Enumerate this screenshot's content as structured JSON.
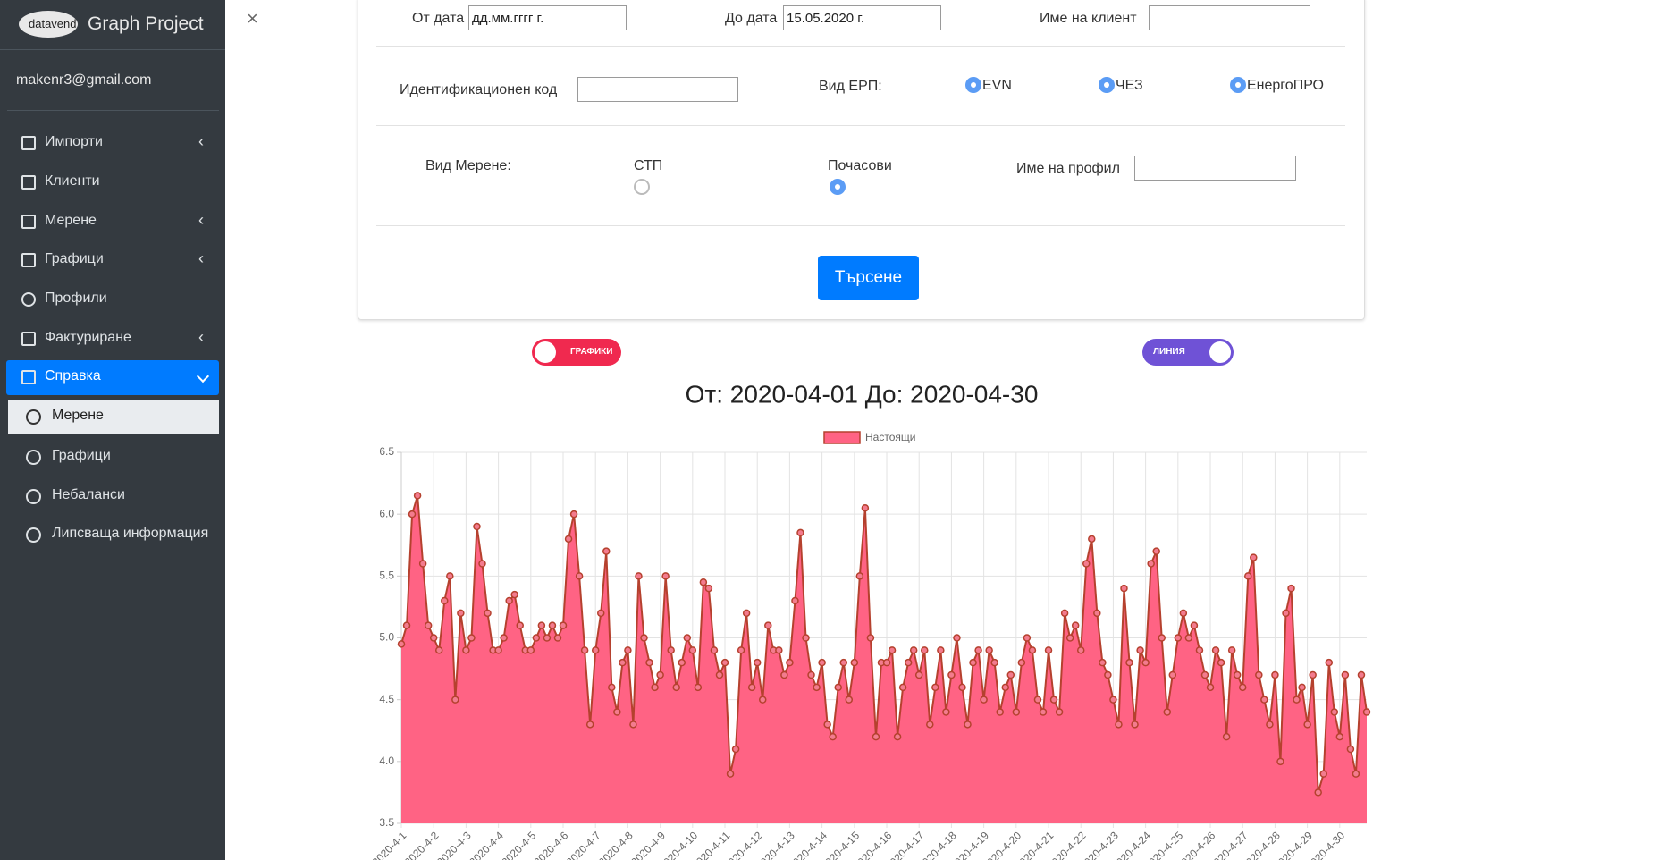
{
  "sidebar": {
    "logo": "datavend",
    "title": "Graph Project",
    "user": "makenr3@gmail.com",
    "menu": [
      "Импорти",
      "Клиенти",
      "Мерене",
      "Графици",
      "Профили",
      "Фактуриране",
      "Справка"
    ],
    "submenu": [
      "Мерене",
      "Графици",
      "Небаланси",
      "Липсваща информация"
    ]
  },
  "close": "×",
  "form": {
    "from_label": "От дата",
    "from_value": "дд.мм.гггг г.",
    "to_label": "До дата",
    "to_value": "15.05.2020 г.",
    "client_label": "Име на клиент",
    "id_label": "Идентификационен код",
    "erp_label": "Вид ЕРП:",
    "erp_options": [
      {
        "label": "EVN",
        "checked": true
      },
      {
        "label": "ЧЕЗ",
        "checked": true
      },
      {
        "label": "ЕнергоПРО",
        "checked": true
      }
    ],
    "measure_label": "Вид Мерене:",
    "measure_options": [
      {
        "label": "СТП",
        "checked": false
      },
      {
        "label": "Почасови",
        "checked": true
      }
    ],
    "profile_label": "Име на профил",
    "button": "Търсене"
  },
  "toggles": [
    "ГРАФИКИ",
    "ЛИНИЯ"
  ],
  "chart_data": {
    "type": "line",
    "title": "От: 2020-04-01 До: 2020-04-30",
    "categories": [
      "2020-4-1",
      null,
      null,
      null,
      null,
      null,
      "2020-4-2",
      null,
      null,
      null,
      null,
      null,
      "2020-4-3",
      null,
      null,
      null,
      null,
      null,
      "2020-4-4",
      null,
      null,
      null,
      null,
      null,
      "2020-4-5",
      null,
      null,
      null,
      null,
      null,
      "2020-4-6",
      null,
      null,
      null,
      null,
      null,
      "2020-4-7",
      null,
      null,
      null,
      null,
      null,
      "2020-4-8",
      null,
      null,
      null,
      null,
      null,
      "2020-4-9",
      null,
      null,
      null,
      null,
      null,
      "2020-4-10",
      null,
      null,
      null,
      null,
      null,
      "2020-4-11",
      null,
      null,
      null,
      null,
      null,
      "2020-4-12",
      null,
      null,
      null,
      null,
      null,
      "2020-4-13",
      null,
      null,
      null,
      null,
      null,
      "2020-4-14",
      null,
      null,
      null,
      null,
      null,
      "2020-4-15",
      null,
      null,
      null,
      null,
      null,
      "2020-4-16",
      null,
      null,
      null,
      null,
      null,
      "2020-4-17",
      null,
      null,
      null,
      null,
      null,
      "2020-4-18",
      null,
      null,
      null,
      null,
      null,
      "2020-4-19",
      null,
      null,
      null,
      null,
      null,
      "2020-4-20",
      null,
      null,
      null,
      null,
      null,
      "2020-4-21",
      null,
      null,
      null,
      null,
      null,
      "2020-4-22",
      null,
      null,
      null,
      null,
      null,
      "2020-4-23",
      null,
      null,
      null,
      null,
      null,
      "2020-4-24",
      null,
      null,
      null,
      null,
      null,
      "2020-4-25",
      null,
      null,
      null,
      null,
      null,
      "2020-4-26",
      null,
      null,
      null,
      null,
      null,
      "2020-4-27",
      null,
      null,
      null,
      null,
      null,
      "2020-4-28",
      null,
      null,
      null,
      null,
      null,
      "2020-4-29",
      null,
      null,
      null,
      null,
      null,
      "2020-4-30",
      null,
      null,
      null,
      null,
      null
    ],
    "series": [
      {
        "name": "Настоящи",
        "color": "#ff6384",
        "line_color": "#b5412e",
        "values": [
          4.95,
          5.1,
          6.0,
          6.15,
          5.6,
          5.1,
          5.0,
          4.9,
          5.3,
          5.5,
          4.5,
          5.2,
          4.9,
          5.0,
          5.9,
          5.6,
          5.2,
          4.9,
          4.9,
          5.0,
          5.3,
          5.35,
          5.1,
          4.9,
          4.9,
          5.0,
          5.1,
          5.0,
          5.1,
          5.0,
          5.1,
          5.8,
          6.0,
          5.5,
          4.9,
          4.3,
          4.9,
          5.2,
          5.7,
          4.6,
          4.4,
          4.8,
          4.9,
          4.3,
          5.5,
          5.0,
          4.8,
          4.6,
          4.7,
          5.5,
          4.9,
          4.6,
          4.8,
          5.0,
          4.9,
          4.6,
          5.45,
          5.4,
          4.9,
          4.7,
          4.8,
          3.9,
          4.1,
          4.9,
          5.2,
          4.6,
          4.8,
          4.5,
          5.1,
          4.9,
          4.9,
          4.7,
          4.8,
          5.3,
          5.85,
          5.0,
          4.7,
          4.6,
          4.8,
          4.3,
          4.2,
          4.6,
          4.8,
          4.5,
          4.8,
          5.5,
          6.05,
          5.0,
          4.2,
          4.8,
          4.8,
          4.9,
          4.2,
          4.6,
          4.8,
          4.9,
          4.7,
          4.9,
          4.3,
          4.6,
          4.9,
          4.4,
          4.7,
          5.0,
          4.6,
          4.3,
          4.8,
          4.9,
          4.5,
          4.9,
          4.8,
          4.4,
          4.6,
          4.7,
          4.4,
          4.8,
          5.0,
          4.9,
          4.5,
          4.4,
          4.9,
          4.5,
          4.4,
          5.2,
          5.0,
          5.1,
          4.9,
          5.6,
          5.8,
          5.2,
          4.8,
          4.7,
          4.5,
          4.3,
          5.4,
          4.8,
          4.3,
          4.9,
          4.8,
          5.6,
          5.7,
          5.0,
          4.4,
          4.7,
          5.0,
          5.2,
          5.0,
          5.1,
          4.9,
          4.7,
          4.6,
          4.9,
          4.8,
          4.2,
          4.9,
          4.7,
          4.6,
          5.5,
          5.65,
          4.7,
          4.5,
          4.3,
          4.7,
          4.0,
          5.2,
          5.4,
          4.5,
          4.6,
          4.3,
          4.7,
          3.75,
          3.9,
          4.8,
          4.4,
          4.2,
          4.7,
          4.1,
          3.9,
          4.7,
          4.4
        ]
      }
    ],
    "ylim": [
      3.5,
      6.5
    ],
    "yticks": [
      3.5,
      {
        "value": 4,
        "label": "4.0"
      },
      4.5,
      {
        "value": 5,
        "label": "5.0"
      },
      5.5,
      {
        "value": 6,
        "label": "6.0"
      },
      6.5
    ],
    "grid": true,
    "legend": "top"
  }
}
